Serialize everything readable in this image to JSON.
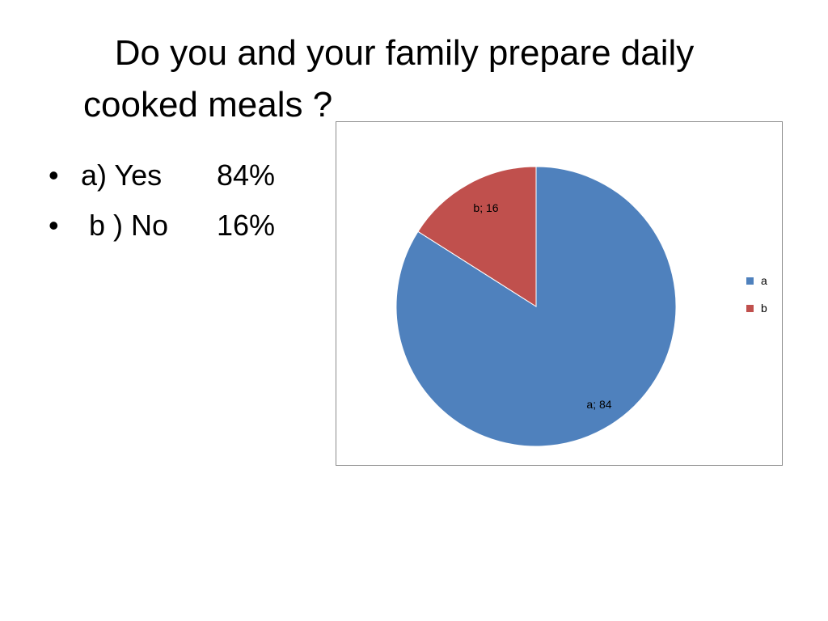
{
  "title": {
    "line1": "Do you and your family prepare daily",
    "line2": "cooked meals ?"
  },
  "bullets": [
    {
      "marker": "•",
      "label": "a) Yes",
      "value": "84%"
    },
    {
      "marker": "•",
      "label": " b ) No",
      "value": "16%"
    }
  ],
  "chart_data": {
    "type": "pie",
    "title": "",
    "categories": [
      "a",
      "b"
    ],
    "values": [
      84,
      16
    ],
    "data_labels": [
      "a; 84",
      "b; 16"
    ],
    "colors": [
      "#4f81bd",
      "#c0504d"
    ],
    "start_angle": "12 o'clock",
    "direction": "clockwise",
    "legend": {
      "position": "right",
      "entries": [
        "a",
        "b"
      ]
    }
  }
}
